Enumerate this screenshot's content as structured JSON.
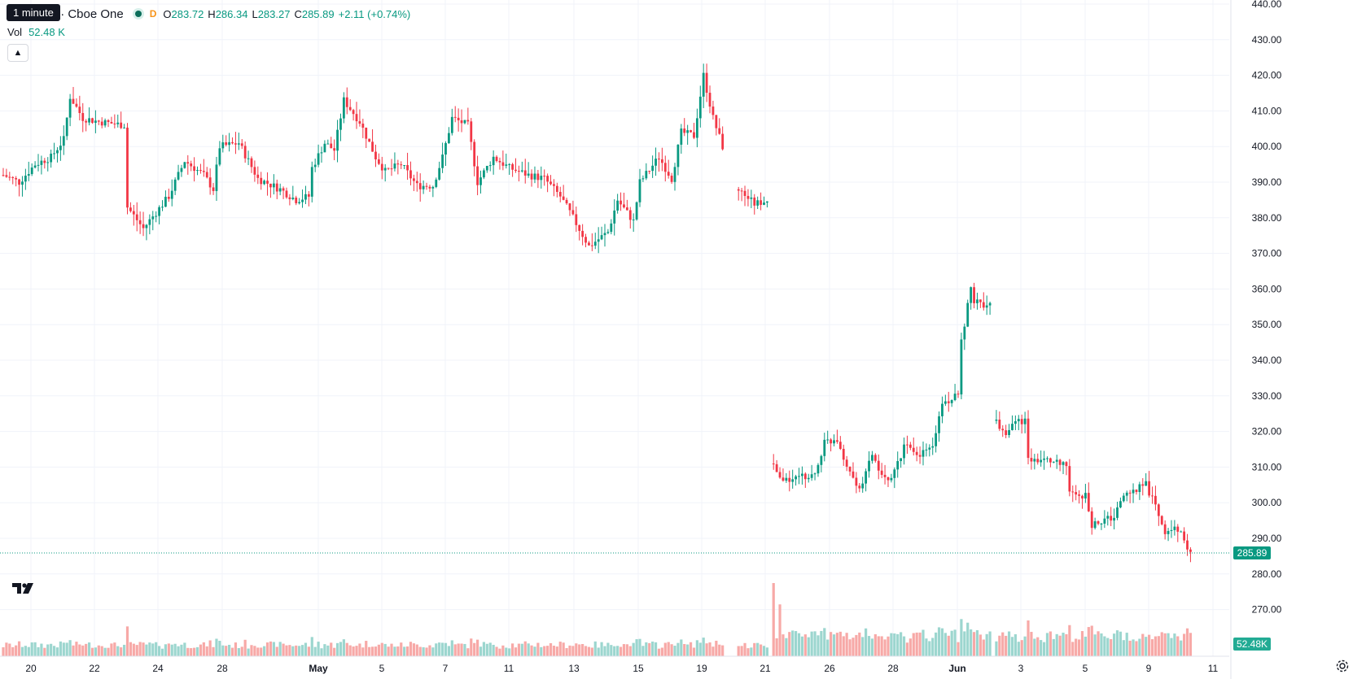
{
  "legend": {
    "tooltip": "1 minute",
    "title": "nc. · 1h · Cboe One",
    "interval_flag": "D",
    "open_label": "O",
    "open_value": "283.72",
    "high_label": "H",
    "high_value": "286.34",
    "low_label": "L",
    "low_value": "283.27",
    "close_label": "C",
    "close_value": "285.89",
    "change": "+2.11 (+0.74%)"
  },
  "volume_legend": {
    "label": "Vol",
    "value": "52.48 K"
  },
  "colors": {
    "up": "#089981",
    "down": "#f23645",
    "up_volume": "#9cd6cf",
    "down_volume": "#f7a9a7",
    "grid": "#f0f3fa",
    "price_line": "#089981"
  },
  "icons": {
    "logo": "tradingview-logo-icon",
    "collapse": "chevron-up-icon",
    "settings": "gear-icon"
  },
  "chart_data": {
    "type": "candlestick",
    "title": "",
    "y_ticks": [
      "440.00",
      "430.00",
      "420.00",
      "410.00",
      "400.00",
      "390.00",
      "380.00",
      "370.00",
      "360.00",
      "350.00",
      "340.00",
      "330.00",
      "320.00",
      "310.00",
      "300.00",
      "290.00",
      "280.00",
      "270.00"
    ],
    "ylim": [
      270,
      440
    ],
    "x_tick_labels": [
      "20",
      "22",
      "24",
      "28",
      "May",
      "5",
      "7",
      "11",
      "13",
      "15",
      "19",
      "21",
      "26",
      "28",
      "Jun",
      "3",
      "5",
      "9",
      "11"
    ],
    "last_price_label": "285.89",
    "last_price": 285.89,
    "last_volume_label": "52.48K",
    "grid": true,
    "segments": [
      {
        "name": "first",
        "anchors": [
          [
            0,
            392
          ],
          [
            5,
            390
          ],
          [
            10,
            395
          ],
          [
            15,
            397
          ],
          [
            19,
            402
          ],
          [
            21,
            414
          ],
          [
            25,
            408
          ],
          [
            30,
            407
          ],
          [
            38,
            406
          ],
          [
            39,
            383
          ],
          [
            44,
            377
          ],
          [
            52,
            386
          ],
          [
            57,
            396
          ],
          [
            63,
            392
          ],
          [
            66,
            388
          ],
          [
            68,
            400
          ],
          [
            74,
            401
          ],
          [
            80,
            391
          ],
          [
            87,
            388
          ],
          [
            92,
            385
          ],
          [
            96,
            386
          ],
          [
            97,
            394
          ],
          [
            101,
            401
          ],
          [
            104,
            399
          ],
          [
            107,
            413
          ],
          [
            112,
            407
          ],
          [
            117,
            397
          ],
          [
            120,
            393
          ],
          [
            125,
            395
          ],
          [
            130,
            389
          ],
          [
            135,
            389
          ],
          [
            138,
            397
          ],
          [
            141,
            408
          ],
          [
            146,
            406
          ],
          [
            149,
            390
          ],
          [
            154,
            397
          ],
          [
            159,
            394
          ],
          [
            165,
            392
          ],
          [
            170,
            391
          ],
          [
            175,
            386
          ],
          [
            179,
            380
          ],
          [
            184,
            372
          ],
          [
            190,
            376
          ],
          [
            193,
            385
          ],
          [
            198,
            379
          ],
          [
            200,
            390
          ],
          [
            206,
            397
          ],
          [
            210,
            391
          ],
          [
            213,
            404
          ],
          [
            217,
            403
          ],
          [
            220,
            420
          ],
          [
            223,
            408
          ],
          [
            226,
            400
          ]
        ],
        "wick": 3.5,
        "seed": 7
      },
      {
        "name": "gap-after-may-20",
        "anchors": [
          [
            231,
            388
          ],
          [
            236,
            384
          ],
          [
            240,
            385
          ]
        ],
        "wick": 3,
        "seed": 3
      },
      {
        "name": "after-restructure",
        "anchors": [
          [
            242,
            311
          ],
          [
            244,
            306
          ],
          [
            250,
            307
          ],
          [
            255,
            308
          ],
          [
            258,
            317
          ],
          [
            262,
            318
          ],
          [
            264,
            313
          ],
          [
            269,
            303
          ],
          [
            273,
            314
          ],
          [
            276,
            307
          ],
          [
            279,
            306
          ],
          [
            283,
            316
          ],
          [
            287,
            313
          ],
          [
            292,
            316
          ],
          [
            295,
            328
          ],
          [
            300,
            330
          ],
          [
            301,
            345
          ],
          [
            304,
            360
          ],
          [
            305,
            357
          ],
          [
            310,
            355
          ]
        ],
        "wick": 3,
        "seed": 5
      },
      {
        "name": "after-drop",
        "anchors": [
          [
            312,
            323
          ],
          [
            315,
            318
          ],
          [
            317,
            323
          ],
          [
            321,
            323
          ],
          [
            322,
            312
          ],
          [
            328,
            312
          ],
          [
            334,
            310
          ],
          [
            335,
            303
          ],
          [
            340,
            302
          ],
          [
            342,
            294
          ],
          [
            349,
            296
          ],
          [
            352,
            302
          ],
          [
            359,
            305
          ],
          [
            362,
            299
          ],
          [
            365,
            292
          ],
          [
            370,
            293
          ],
          [
            372,
            286
          ],
          [
            373,
            285.89
          ]
        ],
        "wick": 3,
        "seed": 11
      }
    ],
    "volume": {
      "base": 1.2,
      "spike_index": 242,
      "spike_value": 12
    }
  }
}
